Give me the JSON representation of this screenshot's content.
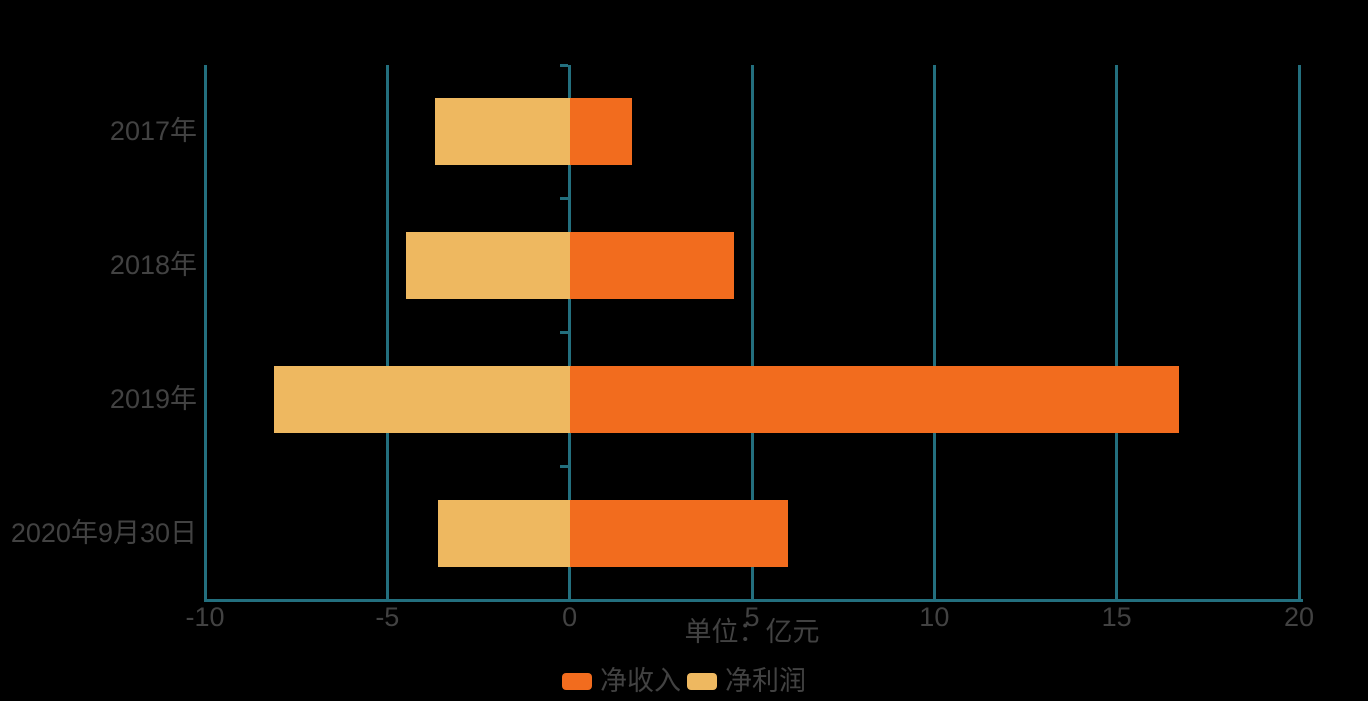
{
  "chart_data": {
    "type": "bar",
    "orientation": "horizontal",
    "stacked": true,
    "title": "",
    "categories": [
      "2017年",
      "2018年",
      "2019年",
      "2020年9月30日"
    ],
    "series": [
      {
        "name": "净收入",
        "color": "#F26C1E",
        "values": [
          1.7,
          4.5,
          16.7,
          6.0
        ]
      },
      {
        "name": "净利润",
        "color": "#EEB860",
        "values": [
          -3.7,
          -4.5,
          -8.1,
          -3.6
        ]
      }
    ],
    "xlabel": "单位：亿元",
    "ylabel": "",
    "x_ticks": [
      -10,
      -5,
      0,
      5,
      10,
      15,
      20
    ],
    "xlim": [
      -10,
      20
    ],
    "grid": true,
    "legend_position": "bottom",
    "axis_color": "#236F7E",
    "text_color": "#424242",
    "background": "#000000"
  }
}
